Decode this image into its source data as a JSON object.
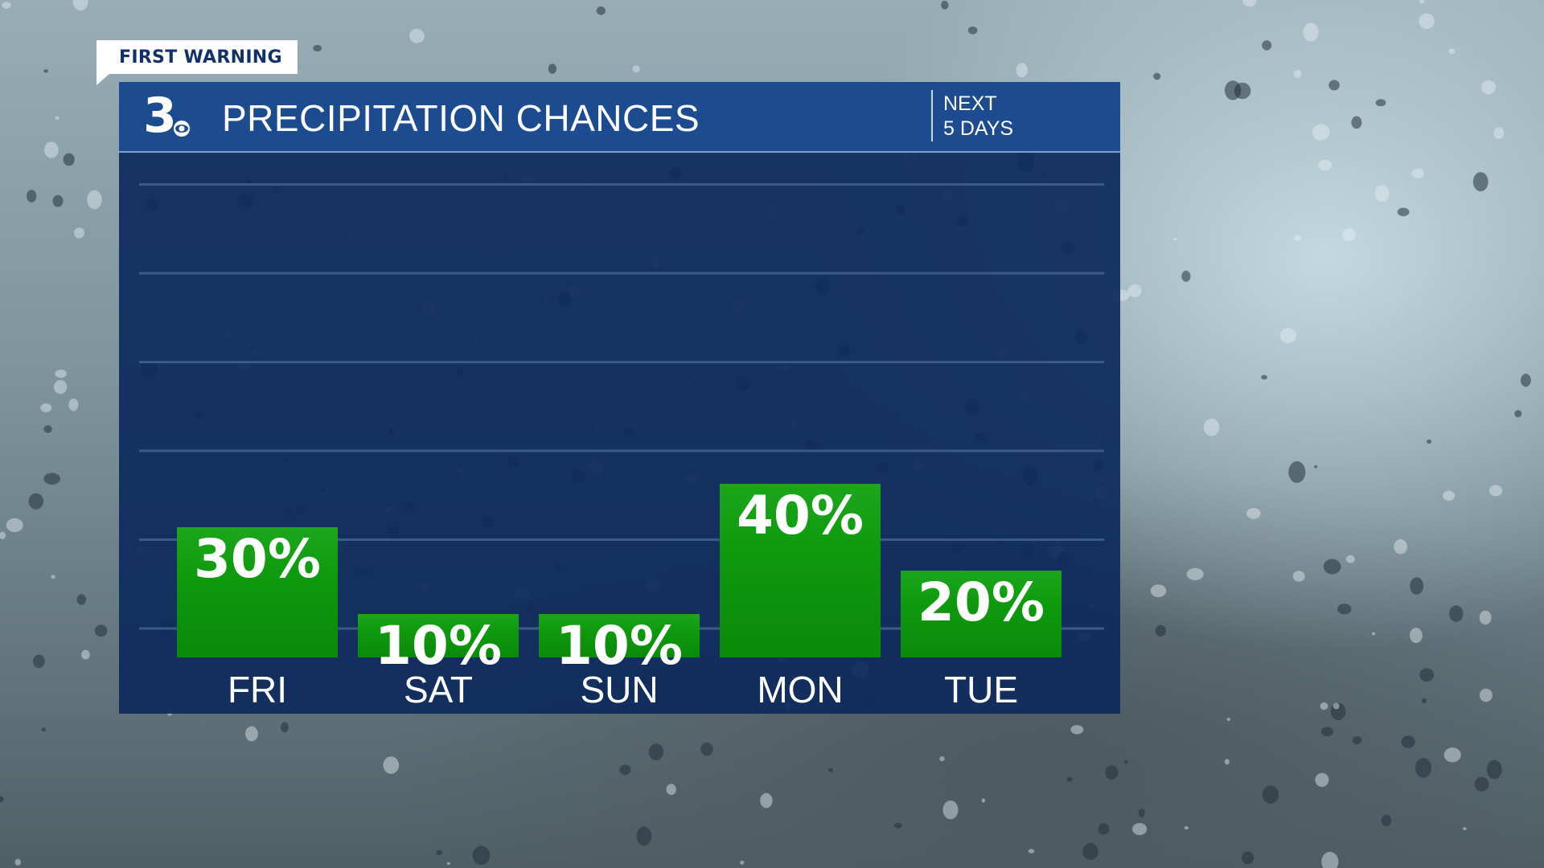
{
  "badge": {
    "label": "FIRST WARNING"
  },
  "header": {
    "title": "PRECIPITATION CHANCES",
    "subtitle_line1": "NEXT",
    "subtitle_line2": "5 DAYS",
    "logo_text": "3",
    "logo_icon": "cbs-eye-icon"
  },
  "colors": {
    "panel": "#0e2a5c",
    "header": "#1d4b8f",
    "bar_top": "#1da61d",
    "bar_bottom": "#0a8a0a",
    "gridline": "#3c5a86"
  },
  "chart_data": {
    "type": "bar",
    "categories": [
      "FRI",
      "SAT",
      "SUN",
      "MON",
      "TUE"
    ],
    "values": [
      30,
      10,
      10,
      40,
      20
    ],
    "data_labels": [
      "30%",
      "10%",
      "10%",
      "40%",
      "20%"
    ],
    "title": "PRECIPITATION CHANCES",
    "subtitle": "NEXT 5 DAYS",
    "ylim": [
      0,
      100
    ],
    "grid": true,
    "unit": "%"
  }
}
